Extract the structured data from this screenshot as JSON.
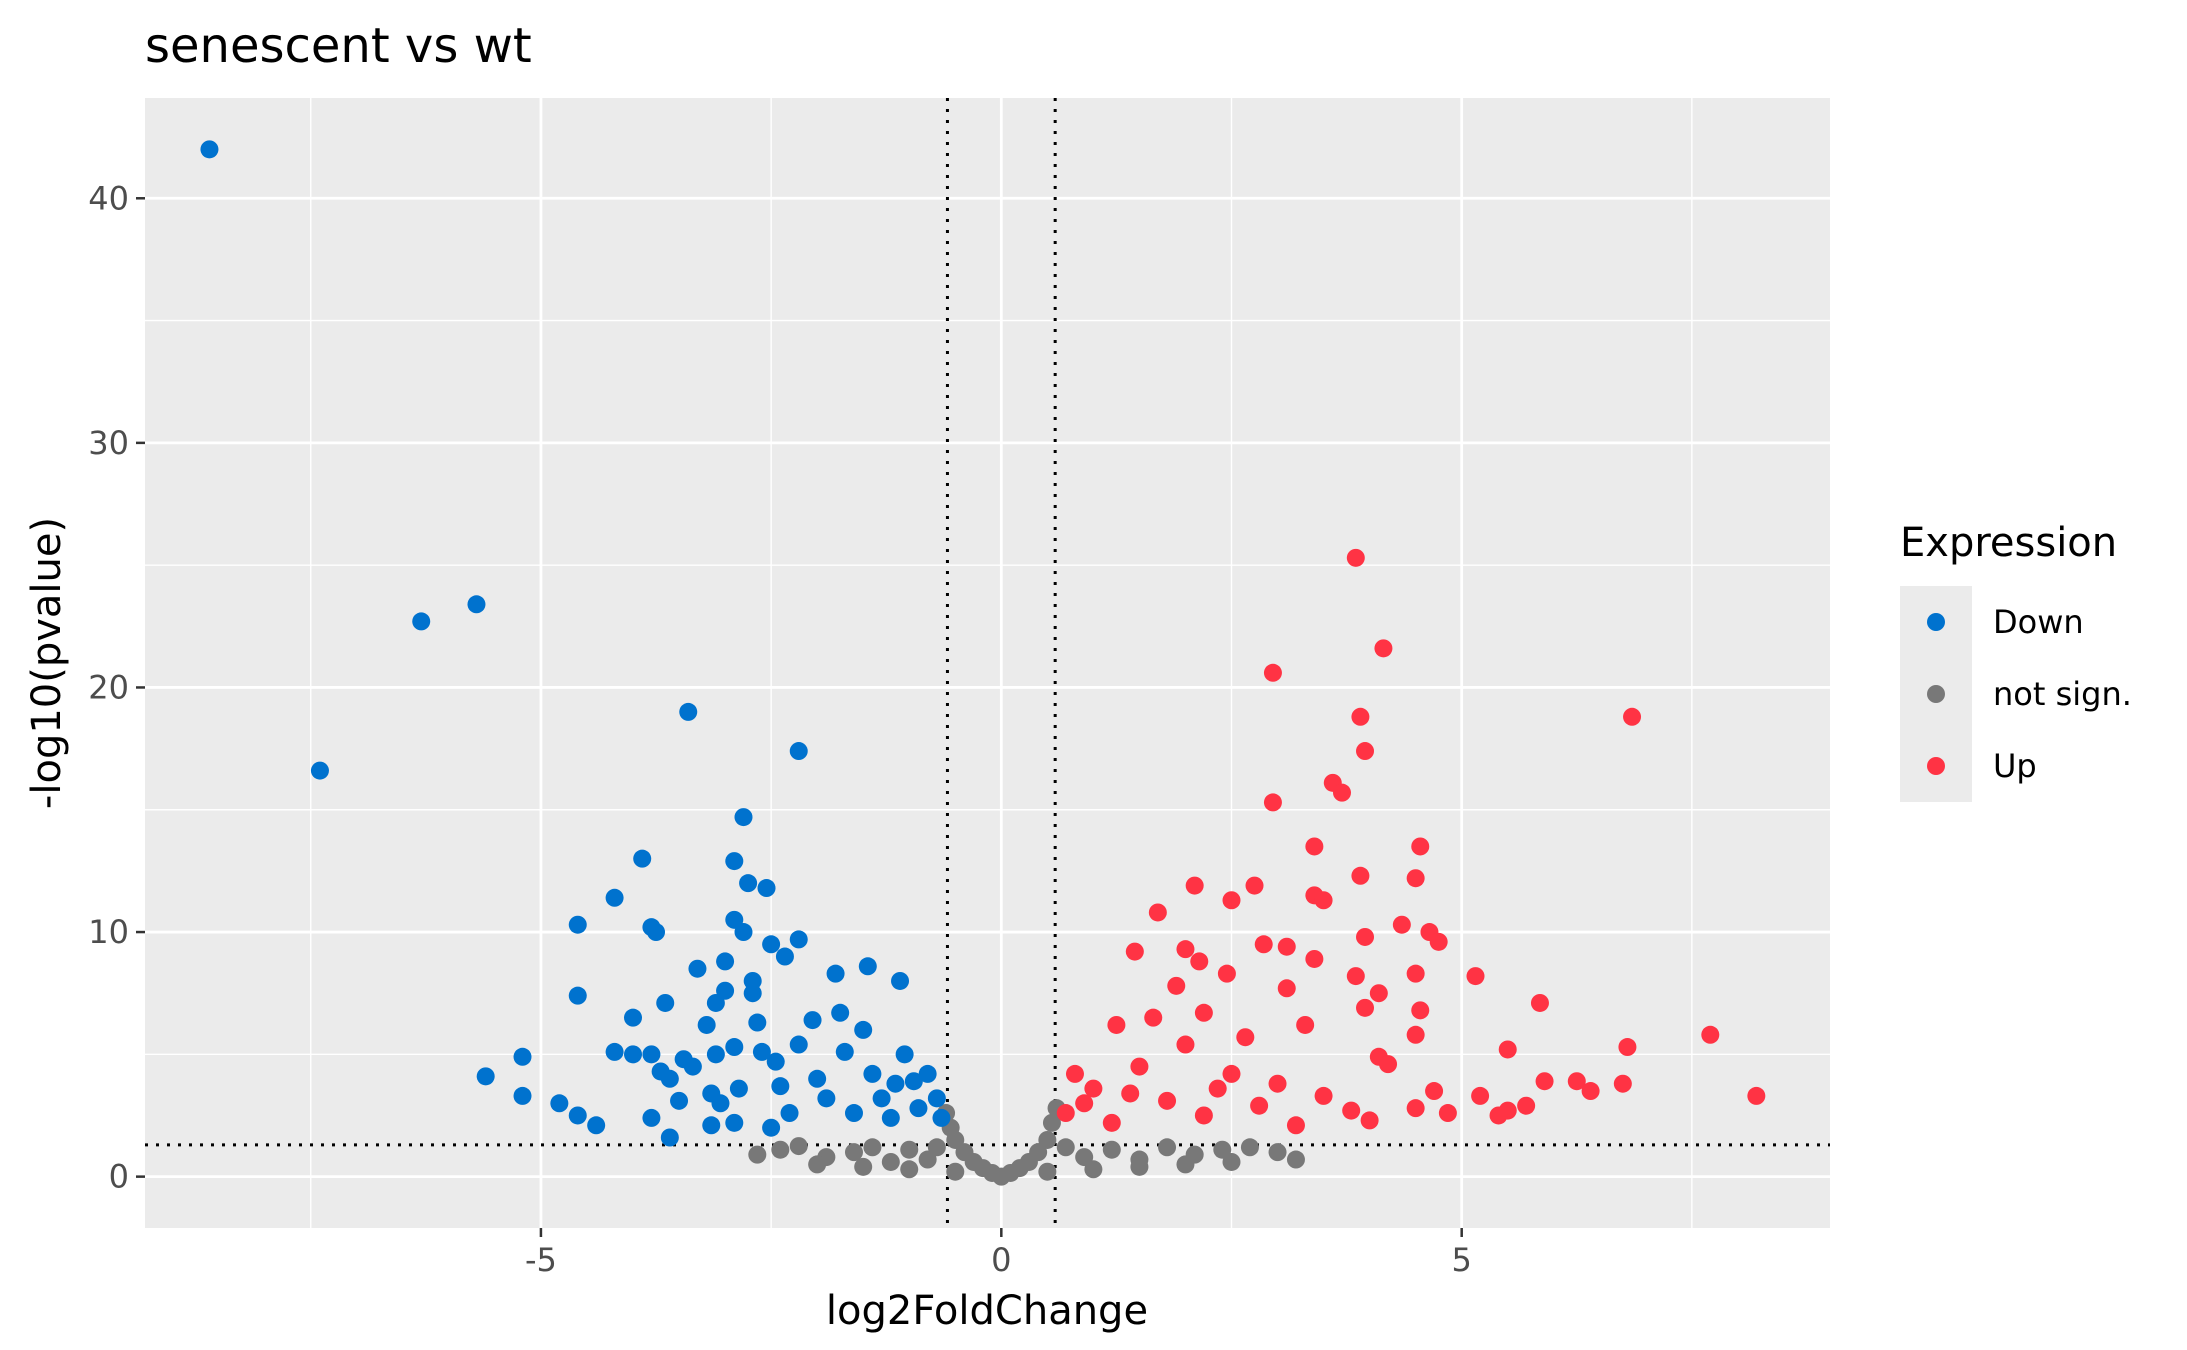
{
  "chart_data": {
    "type": "scatter",
    "title": "senescent vs wt",
    "xlabel": "log2FoldChange",
    "ylabel": "-log10(pvalue)",
    "xlim": [
      -9.3,
      9.0
    ],
    "ylim": [
      -2.1,
      44.1
    ],
    "x_ticks": [
      -5,
      0,
      5
    ],
    "x_tick_labels": [
      "-5",
      "0",
      "5"
    ],
    "y_ticks": [
      0,
      10,
      20,
      30,
      40
    ],
    "y_tick_labels": [
      "0",
      "10",
      "20",
      "30",
      "40"
    ],
    "grid": true,
    "panel_background": "#ebebeb",
    "thresholds": {
      "log2fc": [
        -0.585,
        0.585
      ],
      "neg_log10_pvalue": 1.3
    },
    "legend": {
      "title": "Expression",
      "position": "right",
      "items": [
        {
          "label": "Down",
          "color": "#0072CE"
        },
        {
          "label": "not sign.",
          "color": "#787878"
        },
        {
          "label": "Up",
          "color": "#FF3344"
        }
      ]
    },
    "series": [
      {
        "name": "Down",
        "color": "#0072CE",
        "points": [
          [
            -8.6,
            42.0
          ],
          [
            -7.4,
            16.6
          ],
          [
            -6.3,
            22.7
          ],
          [
            -5.7,
            23.4
          ],
          [
            -5.6,
            4.1
          ],
          [
            -5.2,
            4.9
          ],
          [
            -5.2,
            3.3
          ],
          [
            -4.8,
            3.0
          ],
          [
            -4.6,
            10.3
          ],
          [
            -4.6,
            7.4
          ],
          [
            -4.6,
            2.5
          ],
          [
            -4.4,
            2.1
          ],
          [
            -4.2,
            11.4
          ],
          [
            -4.2,
            5.1
          ],
          [
            -4.0,
            6.5
          ],
          [
            -4.0,
            5.0
          ],
          [
            -3.9,
            13.0
          ],
          [
            -3.8,
            10.2
          ],
          [
            -3.8,
            5.0
          ],
          [
            -3.8,
            2.4
          ],
          [
            -3.75,
            10.0
          ],
          [
            -3.7,
            4.3
          ],
          [
            -3.65,
            7.1
          ],
          [
            -3.6,
            4.0
          ],
          [
            -3.6,
            1.6
          ],
          [
            -3.5,
            3.1
          ],
          [
            -3.4,
            19.0
          ],
          [
            -3.45,
            4.8
          ],
          [
            -3.35,
            4.5
          ],
          [
            -3.3,
            8.5
          ],
          [
            -3.2,
            6.2
          ],
          [
            -3.15,
            3.4
          ],
          [
            -3.15,
            2.1
          ],
          [
            -3.1,
            7.1
          ],
          [
            -3.1,
            5.0
          ],
          [
            -3.0,
            8.8
          ],
          [
            -3.0,
            7.6
          ],
          [
            -2.9,
            12.9
          ],
          [
            -2.9,
            10.5
          ],
          [
            -2.9,
            5.3
          ],
          [
            -2.85,
            3.6
          ],
          [
            -2.8,
            14.7
          ],
          [
            -2.8,
            10.0
          ],
          [
            -2.75,
            12.0
          ],
          [
            -2.7,
            8.0
          ],
          [
            -2.7,
            7.5
          ],
          [
            -2.65,
            6.3
          ],
          [
            -2.55,
            11.8
          ],
          [
            -2.5,
            9.5
          ],
          [
            -2.45,
            4.7
          ],
          [
            -2.35,
            9.0
          ],
          [
            -2.2,
            17.4
          ],
          [
            -2.2,
            9.7
          ],
          [
            -2.05,
            6.4
          ],
          [
            -2.0,
            4.0
          ],
          [
            -1.8,
            8.3
          ],
          [
            -1.75,
            6.7
          ],
          [
            -1.5,
            6.0
          ],
          [
            -1.45,
            8.6
          ],
          [
            -1.4,
            4.2
          ],
          [
            -1.15,
            3.8
          ],
          [
            -1.1,
            8.0
          ],
          [
            -1.05,
            5.0
          ],
          [
            -0.8,
            4.2
          ],
          [
            -0.7,
            3.2
          ],
          [
            -0.65,
            2.4
          ],
          [
            -2.6,
            5.1
          ],
          [
            -2.4,
            3.7
          ],
          [
            -2.2,
            5.4
          ],
          [
            -1.9,
            3.2
          ],
          [
            -1.7,
            5.1
          ],
          [
            -1.6,
            2.6
          ],
          [
            -1.3,
            3.2
          ],
          [
            -1.2,
            2.4
          ],
          [
            -0.95,
            3.9
          ],
          [
            -0.9,
            2.8
          ],
          [
            -2.9,
            2.2
          ],
          [
            -2.5,
            2.0
          ],
          [
            -3.05,
            3.0
          ],
          [
            -2.3,
            2.6
          ]
        ]
      },
      {
        "name": "not sign.",
        "color": "#787878",
        "points": [
          [
            -2.65,
            0.9
          ],
          [
            -2.4,
            1.1
          ],
          [
            -2.2,
            1.25
          ],
          [
            -1.9,
            0.8
          ],
          [
            -1.6,
            1.0
          ],
          [
            -1.4,
            1.2
          ],
          [
            -1.2,
            0.6
          ],
          [
            -1.0,
            1.1
          ],
          [
            -0.8,
            0.7
          ],
          [
            -0.7,
            1.2
          ],
          [
            -0.6,
            2.6
          ],
          [
            -0.55,
            2.0
          ],
          [
            -0.5,
            1.5
          ],
          [
            -0.4,
            1.0
          ],
          [
            -0.3,
            0.6
          ],
          [
            -0.2,
            0.35
          ],
          [
            -0.1,
            0.15
          ],
          [
            0.0,
            0.0
          ],
          [
            0.1,
            0.15
          ],
          [
            0.2,
            0.35
          ],
          [
            0.3,
            0.6
          ],
          [
            0.4,
            1.0
          ],
          [
            0.5,
            1.5
          ],
          [
            0.55,
            2.2
          ],
          [
            0.6,
            2.8
          ],
          [
            0.7,
            1.2
          ],
          [
            0.9,
            0.8
          ],
          [
            1.2,
            1.1
          ],
          [
            1.5,
            0.7
          ],
          [
            1.8,
            1.2
          ],
          [
            2.1,
            0.9
          ],
          [
            2.4,
            1.1
          ],
          [
            2.7,
            1.2
          ],
          [
            3.0,
            1.0
          ],
          [
            3.2,
            0.7
          ],
          [
            -2.0,
            0.5
          ],
          [
            -1.5,
            0.4
          ],
          [
            -1.0,
            0.3
          ],
          [
            -0.5,
            0.2
          ],
          [
            0.5,
            0.2
          ],
          [
            1.0,
            0.3
          ],
          [
            1.5,
            0.4
          ],
          [
            2.0,
            0.5
          ],
          [
            2.5,
            0.6
          ]
        ]
      },
      {
        "name": "Up",
        "color": "#FF3344",
        "points": [
          [
            3.85,
            25.3
          ],
          [
            4.15,
            21.6
          ],
          [
            2.95,
            20.6
          ],
          [
            6.85,
            18.8
          ],
          [
            3.9,
            18.8
          ],
          [
            3.95,
            17.4
          ],
          [
            3.6,
            16.1
          ],
          [
            3.7,
            15.7
          ],
          [
            2.95,
            15.3
          ],
          [
            3.4,
            13.5
          ],
          [
            4.55,
            13.5
          ],
          [
            3.9,
            12.3
          ],
          [
            4.5,
            12.2
          ],
          [
            2.75,
            11.9
          ],
          [
            2.1,
            11.9
          ],
          [
            3.4,
            11.5
          ],
          [
            3.5,
            11.3
          ],
          [
            2.5,
            11.3
          ],
          [
            1.7,
            10.8
          ],
          [
            4.35,
            10.3
          ],
          [
            4.65,
            10.0
          ],
          [
            3.95,
            9.8
          ],
          [
            4.75,
            9.6
          ],
          [
            2.85,
            9.5
          ],
          [
            3.1,
            9.4
          ],
          [
            2.0,
            9.3
          ],
          [
            1.45,
            9.2
          ],
          [
            3.4,
            8.9
          ],
          [
            2.15,
            8.8
          ],
          [
            4.5,
            8.3
          ],
          [
            5.15,
            8.2
          ],
          [
            3.85,
            8.2
          ],
          [
            2.45,
            8.3
          ],
          [
            1.9,
            7.8
          ],
          [
            3.1,
            7.7
          ],
          [
            4.1,
            7.5
          ],
          [
            5.85,
            7.1
          ],
          [
            3.95,
            6.9
          ],
          [
            4.55,
            6.8
          ],
          [
            2.2,
            6.7
          ],
          [
            1.65,
            6.5
          ],
          [
            3.3,
            6.2
          ],
          [
            4.5,
            5.8
          ],
          [
            1.25,
            6.2
          ],
          [
            2.65,
            5.7
          ],
          [
            7.7,
            5.8
          ],
          [
            6.8,
            5.3
          ],
          [
            5.5,
            5.2
          ],
          [
            4.1,
            4.9
          ],
          [
            2.0,
            5.4
          ],
          [
            0.8,
            4.2
          ],
          [
            1.0,
            3.6
          ],
          [
            1.5,
            4.5
          ],
          [
            2.5,
            4.2
          ],
          [
            3.0,
            3.8
          ],
          [
            3.5,
            3.3
          ],
          [
            4.5,
            2.8
          ],
          [
            5.2,
            3.3
          ],
          [
            5.5,
            2.7
          ],
          [
            5.9,
            3.9
          ],
          [
            6.25,
            3.9
          ],
          [
            6.4,
            3.5
          ],
          [
            6.75,
            3.8
          ],
          [
            8.2,
            3.3
          ],
          [
            4.7,
            3.5
          ],
          [
            4.2,
            4.6
          ],
          [
            0.7,
            2.6
          ],
          [
            1.2,
            2.2
          ],
          [
            2.2,
            2.5
          ],
          [
            3.2,
            2.1
          ],
          [
            4.0,
            2.3
          ],
          [
            5.4,
            2.5
          ],
          [
            1.8,
            3.1
          ],
          [
            2.8,
            2.9
          ],
          [
            3.8,
            2.7
          ],
          [
            4.85,
            2.6
          ],
          [
            5.7,
            2.9
          ],
          [
            0.9,
            3.0
          ],
          [
            1.4,
            3.4
          ],
          [
            2.35,
            3.6
          ]
        ]
      }
    ]
  }
}
